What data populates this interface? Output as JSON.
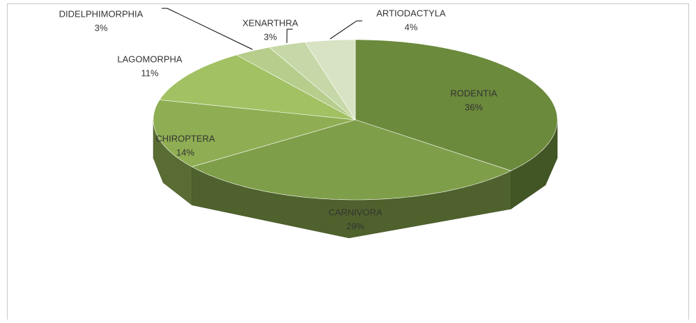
{
  "chart_data": {
    "type": "pie3d",
    "categories": [
      "RODENTIA",
      "CARNIVORA",
      "CHIROPTERA",
      "LAGOMORPHA",
      "DIDELPHIMORPHIA",
      "XENARTHRA",
      "ARTIODACTYLA"
    ],
    "values": [
      36,
      29,
      14,
      11,
      3,
      3,
      4
    ],
    "value_labels": [
      "36%",
      "29%",
      "14%",
      "11%",
      "3%",
      "3%",
      "4%"
    ],
    "colors": [
      "#6b8a3c",
      "#7f9e49",
      "#8fae53",
      "#a2c163",
      "#b6cd8c",
      "#c7d8a8",
      "#d8e3c3"
    ]
  }
}
